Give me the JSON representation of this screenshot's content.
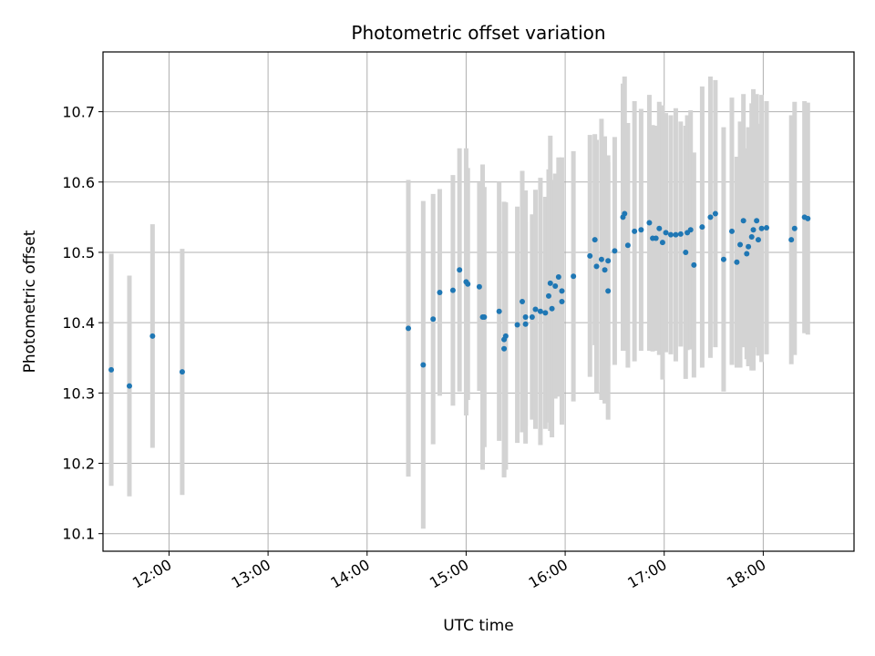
{
  "chart_data": {
    "type": "scatter",
    "title": "Photometric offset variation",
    "xlabel": "UTC time",
    "ylabel": "Photometric offset",
    "x_tick_labels": [
      "12:00",
      "13:00",
      "14:00",
      "15:00",
      "16:00",
      "17:00",
      "18:00"
    ],
    "y_tick_labels": [
      "10.1",
      "10.2",
      "10.3",
      "10.4",
      "10.5",
      "10.6",
      "10.7"
    ],
    "xlim": [
      "11:20",
      "18:55"
    ],
    "ylim": [
      10.075,
      10.785
    ],
    "grid": true,
    "colors": {
      "points": "#1f77b4",
      "errorbars": "#d3d3d3",
      "grid": "#b0b0b0"
    },
    "series": [
      {
        "points": [
          {
            "t": "11:25",
            "y": 10.333,
            "err": 0.165
          },
          {
            "t": "11:36",
            "y": 10.31,
            "err": 0.157
          },
          {
            "t": "11:50",
            "y": 10.381,
            "err": 0.159
          },
          {
            "t": "12:08",
            "y": 10.33,
            "err": 0.175
          },
          {
            "t": "14:25",
            "y": 10.392,
            "err": 0.211
          },
          {
            "t": "14:34",
            "y": 10.34,
            "err": 0.233
          },
          {
            "t": "14:40",
            "y": 10.405,
            "err": 0.178
          },
          {
            "t": "14:44",
            "y": 10.443,
            "err": 0.147
          },
          {
            "t": "14:52",
            "y": 10.446,
            "err": 0.164
          },
          {
            "t": "14:56",
            "y": 10.475,
            "err": 0.173
          },
          {
            "t": "15:00",
            "y": 10.458,
            "err": 0.19
          },
          {
            "t": "15:01",
            "y": 10.455,
            "err": 0.165
          },
          {
            "t": "15:08",
            "y": 10.451,
            "err": 0.148
          },
          {
            "t": "15:10",
            "y": 10.408,
            "err": 0.217
          },
          {
            "t": "15:11",
            "y": 10.408,
            "err": 0.185
          },
          {
            "t": "15:20",
            "y": 10.416,
            "err": 0.184
          },
          {
            "t": "15:23",
            "y": 10.363,
            "err": 0.181
          },
          {
            "t": "15:23",
            "y": 10.376,
            "err": 0.196
          },
          {
            "t": "15:24",
            "y": 10.381,
            "err": 0.19
          },
          {
            "t": "15:31",
            "y": 10.397,
            "err": 0.168
          },
          {
            "t": "15:34",
            "y": 10.43,
            "err": 0.186
          },
          {
            "t": "15:36",
            "y": 10.408,
            "err": 0.18
          },
          {
            "t": "15:36",
            "y": 10.398,
            "err": 0.145
          },
          {
            "t": "15:40",
            "y": 10.408,
            "err": 0.146
          },
          {
            "t": "15:42",
            "y": 10.419,
            "err": 0.17
          },
          {
            "t": "15:45",
            "y": 10.416,
            "err": 0.19
          },
          {
            "t": "15:48",
            "y": 10.414,
            "err": 0.165
          },
          {
            "t": "15:50",
            "y": 10.438,
            "err": 0.18
          },
          {
            "t": "15:51",
            "y": 10.456,
            "err": 0.21
          },
          {
            "t": "15:52",
            "y": 10.42,
            "err": 0.183
          },
          {
            "t": "15:54",
            "y": 10.452,
            "err": 0.16
          },
          {
            "t": "15:56",
            "y": 10.465,
            "err": 0.17
          },
          {
            "t": "15:58",
            "y": 10.445,
            "err": 0.19
          },
          {
            "t": "15:58",
            "y": 10.43,
            "err": 0.17
          },
          {
            "t": "16:05",
            "y": 10.466,
            "err": 0.178
          },
          {
            "t": "16:15",
            "y": 10.495,
            "err": 0.172
          },
          {
            "t": "16:18",
            "y": 10.518,
            "err": 0.15
          },
          {
            "t": "16:19",
            "y": 10.48,
            "err": 0.18
          },
          {
            "t": "16:22",
            "y": 10.49,
            "err": 0.2
          },
          {
            "t": "16:24",
            "y": 10.475,
            "err": 0.19
          },
          {
            "t": "16:26",
            "y": 10.445,
            "err": 0.183
          },
          {
            "t": "16:26",
            "y": 10.488,
            "err": 0.15
          },
          {
            "t": "16:30",
            "y": 10.502,
            "err": 0.162
          },
          {
            "t": "16:35",
            "y": 10.55,
            "err": 0.19
          },
          {
            "t": "16:36",
            "y": 10.555,
            "err": 0.195
          },
          {
            "t": "16:38",
            "y": 10.51,
            "err": 0.174
          },
          {
            "t": "16:42",
            "y": 10.53,
            "err": 0.185
          },
          {
            "t": "16:46",
            "y": 10.532,
            "err": 0.172
          },
          {
            "t": "16:51",
            "y": 10.542,
            "err": 0.182
          },
          {
            "t": "16:53",
            "y": 10.52,
            "err": 0.161
          },
          {
            "t": "16:55",
            "y": 10.52,
            "err": 0.16
          },
          {
            "t": "16:57",
            "y": 10.534,
            "err": 0.18
          },
          {
            "t": "16:59",
            "y": 10.514,
            "err": 0.195
          },
          {
            "t": "17:01",
            "y": 10.528,
            "err": 0.17
          },
          {
            "t": "17:04",
            "y": 10.525,
            "err": 0.17
          },
          {
            "t": "17:07",
            "y": 10.525,
            "err": 0.18
          },
          {
            "t": "17:10",
            "y": 10.526,
            "err": 0.16
          },
          {
            "t": "17:13",
            "y": 10.5,
            "err": 0.18
          },
          {
            "t": "17:14",
            "y": 10.528,
            "err": 0.167
          },
          {
            "t": "17:16",
            "y": 10.532,
            "err": 0.17
          },
          {
            "t": "17:18",
            "y": 10.482,
            "err": 0.16
          },
          {
            "t": "17:23",
            "y": 10.536,
            "err": 0.2
          },
          {
            "t": "17:28",
            "y": 10.55,
            "err": 0.2
          },
          {
            "t": "17:31",
            "y": 10.555,
            "err": 0.19
          },
          {
            "t": "17:36",
            "y": 10.49,
            "err": 0.188
          },
          {
            "t": "17:41",
            "y": 10.53,
            "err": 0.19
          },
          {
            "t": "17:44",
            "y": 10.486,
            "err": 0.15
          },
          {
            "t": "17:46",
            "y": 10.511,
            "err": 0.175
          },
          {
            "t": "17:48",
            "y": 10.545,
            "err": 0.18
          },
          {
            "t": "17:50",
            "y": 10.498,
            "err": 0.15
          },
          {
            "t": "17:51",
            "y": 10.508,
            "err": 0.17
          },
          {
            "t": "17:53",
            "y": 10.522,
            "err": 0.19
          },
          {
            "t": "17:54",
            "y": 10.532,
            "err": 0.2
          },
          {
            "t": "17:56",
            "y": 10.545,
            "err": 0.18
          },
          {
            "t": "17:57",
            "y": 10.518,
            "err": 0.165
          },
          {
            "t": "17:59",
            "y": 10.534,
            "err": 0.19
          },
          {
            "t": "18:02",
            "y": 10.535,
            "err": 0.18
          },
          {
            "t": "18:17",
            "y": 10.518,
            "err": 0.177
          },
          {
            "t": "18:19",
            "y": 10.534,
            "err": 0.18
          },
          {
            "t": "18:25",
            "y": 10.55,
            "err": 0.165
          },
          {
            "t": "18:27",
            "y": 10.548,
            "err": 0.165
          }
        ]
      }
    ]
  }
}
